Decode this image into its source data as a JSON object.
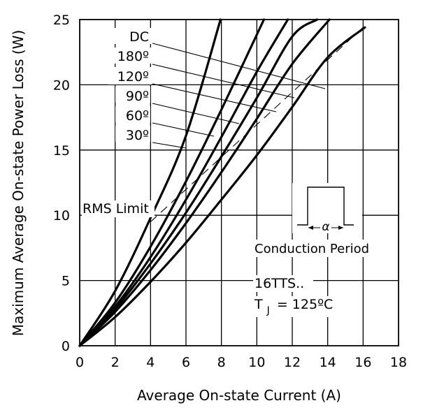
{
  "chart_data": {
    "type": "line",
    "xlabel": "Average On-state Current (A)",
    "ylabel": "Maximum Average On-state Power Loss (W)",
    "xlim": [
      0,
      18
    ],
    "ylim": [
      0,
      25
    ],
    "xticks": [
      0,
      2,
      4,
      6,
      8,
      10,
      12,
      14,
      16,
      18
    ],
    "yticks": [
      0,
      5,
      10,
      15,
      20,
      25
    ],
    "grid": true,
    "series": [
      {
        "name": "DC",
        "x": [
          0,
          2,
          4,
          6,
          8,
          10,
          12,
          14,
          16.1
        ],
        "y": [
          0,
          2.2,
          4.9,
          7.9,
          11.2,
          14.6,
          18.3,
          22.1,
          24.4
        ]
      },
      {
        "name": "180º",
        "x": [
          0,
          2,
          4,
          6,
          8,
          10,
          12,
          14.1
        ],
        "y": [
          0,
          2.6,
          5.8,
          9.4,
          13.3,
          17.4,
          21.6,
          25
        ]
      },
      {
        "name": "120º",
        "x": [
          0,
          2,
          4,
          6,
          8,
          10,
          12,
          13.4
        ],
        "y": [
          0,
          2.8,
          6.3,
          10.2,
          14.5,
          19.0,
          23.7,
          25
        ]
      },
      {
        "name": "90º",
        "x": [
          0,
          2,
          4,
          6,
          8,
          10,
          11.75
        ],
        "y": [
          0,
          3.0,
          6.8,
          11.2,
          16.0,
          21.0,
          25
        ]
      },
      {
        "name": "60º",
        "x": [
          0,
          2,
          4,
          6,
          8,
          10.4
        ],
        "y": [
          0,
          3.3,
          7.6,
          12.6,
          18.1,
          25
        ]
      },
      {
        "name": "30º",
        "x": [
          0,
          2,
          4,
          6,
          7.95
        ],
        "y": [
          0,
          4.2,
          9.8,
          16.1,
          25
        ]
      }
    ],
    "rms_limit": {
      "label": "RMS Limit",
      "x": [
        4.0,
        16.0
      ],
      "y": [
        9.5,
        24.4
      ]
    },
    "annotations": {
      "conduction_period": "Conduction Period",
      "alpha": "α",
      "device": "16TTS..",
      "tj_prefix": "T",
      "tj_sub": "J",
      "tj_value": "= 125ºC"
    }
  }
}
